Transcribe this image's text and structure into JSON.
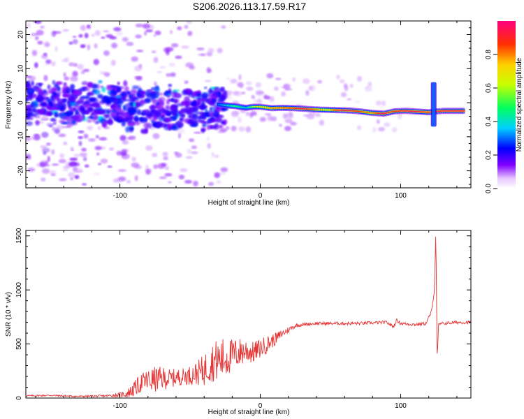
{
  "chart_data": [
    {
      "type": "heatmap",
      "title": "S206.2026.113.17.59.R17",
      "xlabel": "Height of straight line (km)",
      "ylabel": "Frequency (Hz)",
      "xlim": [
        -167,
        150
      ],
      "ylim": [
        -25,
        24
      ],
      "xticks": [
        -100,
        0,
        100
      ],
      "yticks": [
        -20,
        -10,
        0,
        10,
        20
      ],
      "colorbar": {
        "label": "Normalized spectral amplitude",
        "range": [
          0,
          1
        ],
        "ticks": [
          "0.0",
          "0.2",
          "0.4",
          "0.6",
          "0.8"
        ]
      },
      "ridge": [
        {
          "x": -30,
          "y": -0.5,
          "level": 0.3
        },
        {
          "x": -24,
          "y": -0.8,
          "level": 0.4
        },
        {
          "x": -18,
          "y": -1.0,
          "level": 0.5
        },
        {
          "x": -10,
          "y": -1.5,
          "level": 0.4
        },
        {
          "x": -5,
          "y": -1.2,
          "level": 0.6
        },
        {
          "x": 0,
          "y": -1.2,
          "level": 0.7
        },
        {
          "x": 8,
          "y": -1.6,
          "level": 0.8
        },
        {
          "x": 16,
          "y": -1.5,
          "level": 0.85
        },
        {
          "x": 24,
          "y": -1.6,
          "level": 0.9
        },
        {
          "x": 32,
          "y": -1.8,
          "level": 0.95
        },
        {
          "x": 40,
          "y": -2.0,
          "level": 0.8
        },
        {
          "x": 48,
          "y": -2.1,
          "level": 0.7
        },
        {
          "x": 56,
          "y": -2.2,
          "level": 0.95
        },
        {
          "x": 64,
          "y": -2.3,
          "level": 0.95
        },
        {
          "x": 72,
          "y": -2.6,
          "level": 0.85
        },
        {
          "x": 80,
          "y": -3.0,
          "level": 0.8
        },
        {
          "x": 88,
          "y": -3.2,
          "level": 0.95
        },
        {
          "x": 96,
          "y": -2.5,
          "level": 0.9
        },
        {
          "x": 104,
          "y": -2.4,
          "level": 0.95
        },
        {
          "x": 112,
          "y": -2.6,
          "level": 0.95
        },
        {
          "x": 120,
          "y": -2.8,
          "level": 0.9
        },
        {
          "x": 130,
          "y": -2.4,
          "level": 0.95
        },
        {
          "x": 138,
          "y": -2.4,
          "level": 0.95
        },
        {
          "x": 146,
          "y": -2.4,
          "level": 0.95
        }
      ]
    },
    {
      "type": "line",
      "xlabel": "Height of straight line (km)",
      "ylabel": "SNR (10 * v/v)",
      "xlim": [
        -167,
        150
      ],
      "ylim": [
        0,
        1550
      ],
      "xticks": [
        -100,
        0,
        100
      ],
      "yticks": [
        0,
        500,
        1000,
        1500
      ],
      "series": [
        {
          "name": "SNR",
          "color": "#e63333",
          "x": [
            -167,
            -150,
            -130,
            -110,
            -100,
            -95,
            -90,
            -85,
            -80,
            -75,
            -70,
            -65,
            -60,
            -55,
            -50,
            -45,
            -40,
            -35,
            -30,
            -25,
            -20,
            -15,
            -10,
            -5,
            0,
            5,
            10,
            15,
            20,
            25,
            30,
            40,
            50,
            60,
            70,
            80,
            90,
            95,
            97,
            100,
            110,
            118,
            122,
            124,
            125,
            126,
            127,
            130,
            140,
            150
          ],
          "values": [
            20,
            25,
            15,
            20,
            30,
            40,
            80,
            140,
            160,
            170,
            180,
            180,
            190,
            200,
            210,
            230,
            260,
            330,
            350,
            370,
            400,
            420,
            440,
            420,
            460,
            500,
            540,
            590,
            630,
            670,
            680,
            690,
            690,
            690,
            690,
            695,
            700,
            660,
            720,
            690,
            680,
            690,
            800,
            1000,
            1550,
            340,
            680,
            690,
            700,
            700
          ],
          "amplitude": [
            8,
            8,
            8,
            10,
            20,
            40,
            70,
            90,
            110,
            120,
            110,
            90,
            80,
            80,
            90,
            110,
            150,
            180,
            200,
            200,
            150,
            140,
            120,
            100,
            90,
            80,
            60,
            40,
            30,
            20,
            15,
            15,
            15,
            15,
            15,
            15,
            15,
            15,
            15,
            15,
            15,
            15,
            15,
            15,
            15,
            15,
            15,
            15,
            15,
            15
          ]
        }
      ]
    }
  ]
}
